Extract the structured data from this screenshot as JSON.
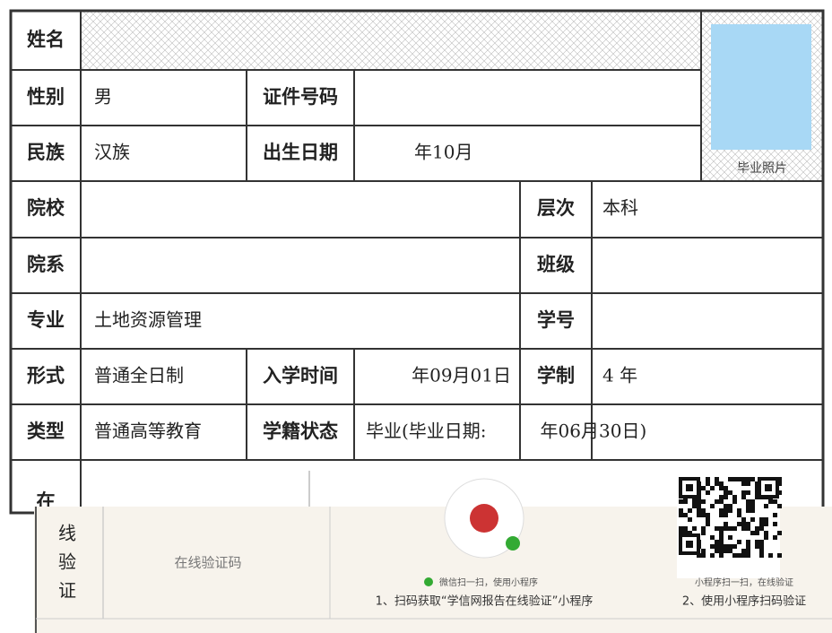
{
  "fields": {
    "name_label": "姓名",
    "gender_label": "性别",
    "gender": "男",
    "id_label": "证件号码",
    "ethnicity_label": "民族",
    "ethnicity": "汉族",
    "birth_label": "出生日期",
    "birth": "年10月",
    "school_label": "院校",
    "level_label": "层次",
    "level": "本科",
    "department_label": "院系",
    "class_label": "班级",
    "major_label": "专业",
    "major": "土地资源管理",
    "student_id_label": "学号",
    "form_label": "形式",
    "form": "普通全日制",
    "enroll_label": "入学时间",
    "enroll": "年09月01日",
    "duration_label": "学制",
    "duration": "4 年",
    "category_label": "类型",
    "category": "普通高等教育",
    "status_label": "学籍状态",
    "status": "毕业(毕业日期:　　　年06月30日)"
  },
  "photo_caption": "毕业照片",
  "verify": {
    "label_chars": [
      "在",
      "线",
      "验",
      "证"
    ],
    "code_label": "在线验证码",
    "wechat_hint": "微信扫一扫，使用小程序",
    "step1": "1、扫码获取“学信网报告在线验证”小程序",
    "mini_hint": "小程序扫一扫，在线验证",
    "step2": "2、使用小程序扫码验证"
  }
}
